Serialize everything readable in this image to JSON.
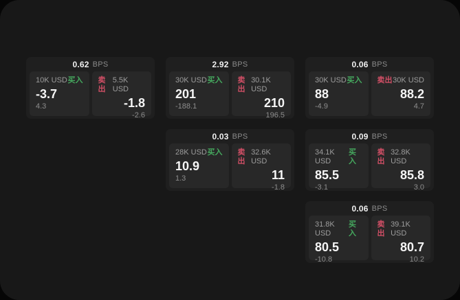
{
  "labels": {
    "bps_unit": "BPS",
    "buy": "买入",
    "sell": "卖出"
  },
  "colors": {
    "buy_accent": "#45a85e",
    "sell_accent": "#d24f66",
    "surface_bg": "#181818",
    "card_bg": "#1f1f1f",
    "subpanel_bg": "#282828",
    "primary_text": "#f5f5f5",
    "muted_text": "#9d9d9d"
  },
  "cards": [
    {
      "bps": "0.62",
      "buy": {
        "size": "10K USD",
        "price": "-3.7",
        "delta": "4.3"
      },
      "sell": {
        "size": "5.5K USD",
        "price": "-1.8",
        "delta": "-2.6"
      }
    },
    {
      "bps": "2.92",
      "buy": {
        "size": "30K USD",
        "price": "201",
        "delta": "-188.1"
      },
      "sell": {
        "size": "30.1K USD",
        "price": "210",
        "delta": "196.5"
      }
    },
    {
      "bps": "0.06",
      "buy": {
        "size": "30K USD",
        "price": "88",
        "delta": "-4.9"
      },
      "sell": {
        "size": "30K USD",
        "price": "88.2",
        "delta": "4.7"
      }
    },
    {
      "bps": "0.03",
      "buy": {
        "size": "28K USD",
        "price": "10.9",
        "delta": "1.3"
      },
      "sell": {
        "size": "32.6K USD",
        "price": "11",
        "delta": "-1.8"
      }
    },
    {
      "bps": "0.09",
      "buy": {
        "size": "34.1K USD",
        "price": "85.5",
        "delta": "-3.1"
      },
      "sell": {
        "size": "32.8K USD",
        "price": "85.8",
        "delta": "3.0"
      }
    },
    {
      "bps": "0.06",
      "buy": {
        "size": "31.8K USD",
        "price": "80.5",
        "delta": "-10.8"
      },
      "sell": {
        "size": "39.1K USD",
        "price": "80.7",
        "delta": "10.2"
      }
    }
  ]
}
